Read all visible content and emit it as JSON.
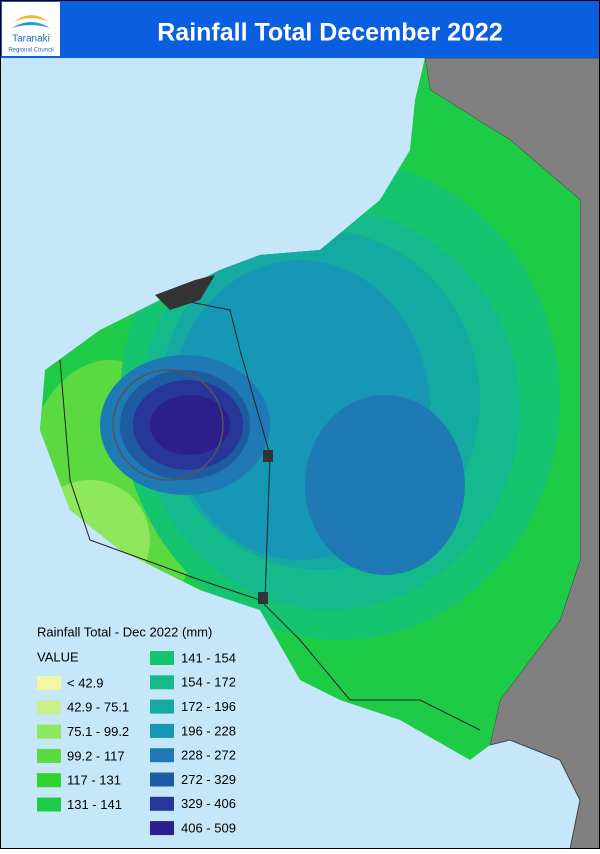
{
  "header": {
    "logo_line1": "Taranaki",
    "logo_line2": "Regional Council",
    "title": "Rainfall Total December 2022"
  },
  "legend": {
    "title": "Rainfall Total - Dec 2022 (mm)",
    "field": "VALUE",
    "items": [
      {
        "label": "< 42.9",
        "color": "#f6f5a2"
      },
      {
        "label": "42.9 - 75.1",
        "color": "#c9f08e"
      },
      {
        "label": "75.1 - 99.2",
        "color": "#8fe75e"
      },
      {
        "label": "99.2 - 117",
        "color": "#5cd840"
      },
      {
        "label": "117 - 131",
        "color": "#2fd52a"
      },
      {
        "label": "131 - 141",
        "color": "#1ecb47"
      },
      {
        "label": "141 - 154",
        "color": "#15c46f"
      },
      {
        "label": "154 - 172",
        "color": "#14b98c"
      },
      {
        "label": "172 - 196",
        "color": "#14aaa2"
      },
      {
        "label": "196 - 228",
        "color": "#1697b6"
      },
      {
        "label": "228 - 272",
        "color": "#1e79b4"
      },
      {
        "label": "272 - 329",
        "color": "#1f5ba0"
      },
      {
        "label": "329 - 406",
        "color": "#28369a"
      },
      {
        "label": "406 - 509",
        "color": "#2c1f8c"
      }
    ]
  }
}
